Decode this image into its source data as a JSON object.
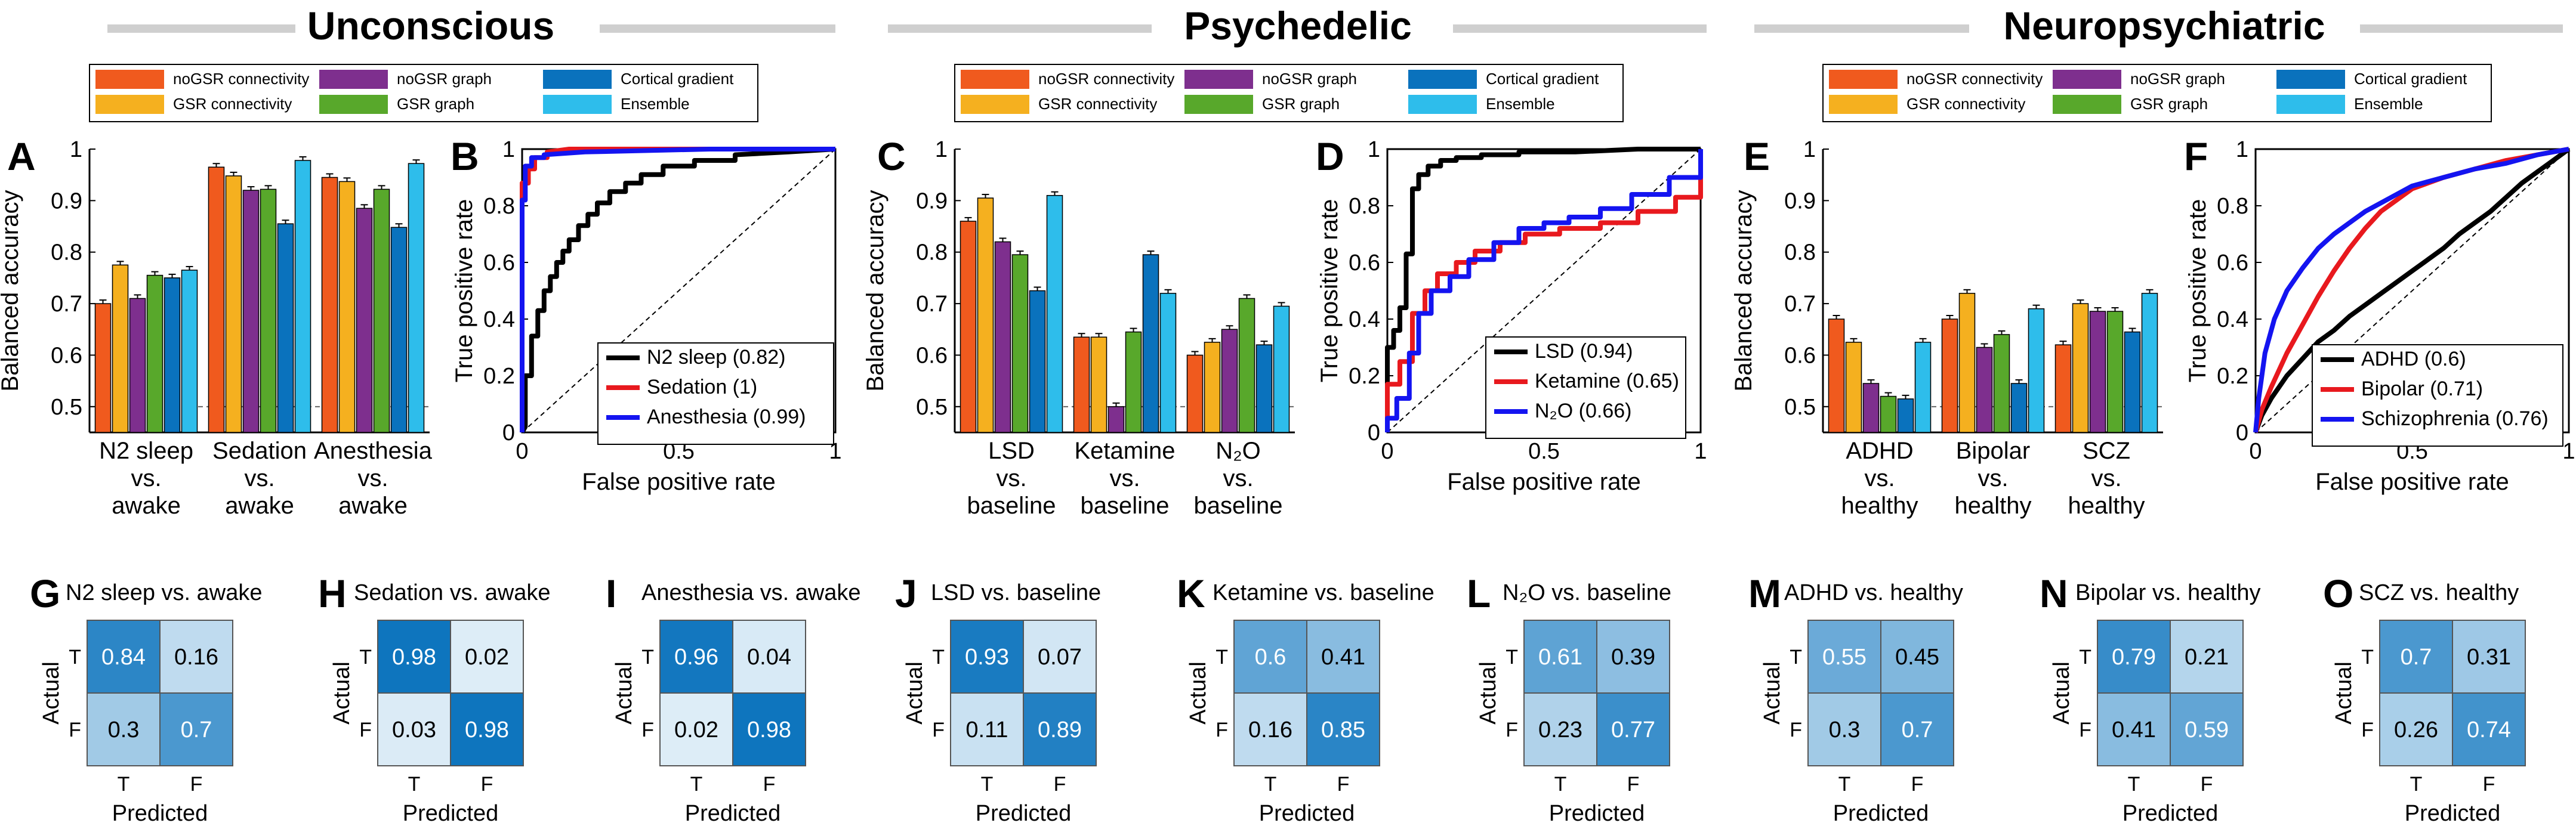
{
  "figure": {
    "groups": [
      {
        "title": "Unconscious"
      },
      {
        "title": "Psychedelic"
      },
      {
        "title": "Neuropsychiatric"
      }
    ],
    "legend": [
      {
        "label": "noGSR connectivity",
        "color": "#F05A1E"
      },
      {
        "label": "noGSR graph",
        "color": "#7E2F8E"
      },
      {
        "label": "Cortical gradient",
        "color": "#0A72BD"
      },
      {
        "label": "GSR connectivity",
        "color": "#F5B01F"
      },
      {
        "label": "GSR graph",
        "color": "#58A82B"
      },
      {
        "label": "Ensemble",
        "color": "#2EBDEB"
      }
    ],
    "colors": {
      "roc_black": "#000000",
      "roc_red": "#E8191E",
      "roc_blue": "#1414F0",
      "cm_dark": "#0A72BD",
      "cm_light": "#E1EFF8",
      "cm_mid": "#5AA5D6"
    }
  },
  "chart_data": [
    {
      "type": "bar",
      "panel": "A",
      "ylabel": "Balanced accuracy",
      "ylim": [
        0.45,
        1.0
      ],
      "yticks": [
        "0.5",
        "0.6",
        "0.7",
        "0.8",
        "0.9",
        "1"
      ],
      "chance_line": 0.5,
      "categories": [
        [
          "N2 sleep",
          "vs.",
          "awake"
        ],
        [
          "Sedation",
          "vs.",
          "awake"
        ],
        [
          "Anesthesia",
          "vs.",
          "awake"
        ]
      ],
      "series": [
        {
          "name": "noGSR connectivity",
          "values": [
            0.7,
            0.965,
            0.945
          ]
        },
        {
          "name": "GSR connectivity",
          "values": [
            0.775,
            0.948,
            0.937
          ]
        },
        {
          "name": "noGSR graph",
          "values": [
            0.71,
            0.92,
            0.885
          ]
        },
        {
          "name": "GSR graph",
          "values": [
            0.755,
            0.922,
            0.922
          ]
        },
        {
          "name": "Cortical gradient",
          "values": [
            0.75,
            0.855,
            0.848
          ]
        },
        {
          "name": "Ensemble",
          "values": [
            0.765,
            0.978,
            0.972
          ]
        }
      ]
    },
    {
      "type": "line",
      "panel": "B",
      "xlabel": "False positive rate",
      "ylabel": "True positive rate",
      "xlim": [
        0,
        1
      ],
      "ylim": [
        0,
        1
      ],
      "xticks": [
        "0",
        "0.5",
        "1"
      ],
      "yticks": [
        "0",
        "0.2",
        "0.4",
        "0.6",
        "0.8",
        "1"
      ],
      "legend_position": "bottom-right",
      "series": [
        {
          "name": "N2 sleep (0.82)",
          "color": "black",
          "x": [
            0,
            0.01,
            0.01,
            0.03,
            0.03,
            0.05,
            0.05,
            0.07,
            0.07,
            0.09,
            0.09,
            0.11,
            0.11,
            0.13,
            0.13,
            0.15,
            0.15,
            0.18,
            0.18,
            0.21,
            0.21,
            0.24,
            0.24,
            0.28,
            0.28,
            0.33,
            0.33,
            0.38,
            0.38,
            0.45,
            0.45,
            0.55,
            0.55,
            0.68,
            0.68,
            0.85,
            1
          ],
          "y": [
            0,
            0.02,
            0.2,
            0.2,
            0.34,
            0.34,
            0.43,
            0.43,
            0.5,
            0.5,
            0.55,
            0.55,
            0.6,
            0.6,
            0.64,
            0.64,
            0.68,
            0.68,
            0.73,
            0.73,
            0.77,
            0.77,
            0.81,
            0.81,
            0.85,
            0.85,
            0.88,
            0.88,
            0.91,
            0.91,
            0.94,
            0.94,
            0.96,
            0.96,
            0.98,
            0.99,
            1
          ]
        },
        {
          "name": "Sedation (1)",
          "color": "red",
          "x": [
            0,
            0,
            0.02,
            0.02,
            0.04,
            0.04,
            0.08,
            0.08,
            0.15,
            1
          ],
          "y": [
            0,
            0.88,
            0.88,
            0.93,
            0.93,
            0.97,
            0.97,
            0.99,
            1,
            1
          ]
        },
        {
          "name": "Anesthesia (0.99)",
          "color": "blue",
          "x": [
            0,
            0,
            0.01,
            0.01,
            0.03,
            0.03,
            0.07,
            0.07,
            0.2,
            0.6,
            1
          ],
          "y": [
            0,
            0.82,
            0.82,
            0.94,
            0.94,
            0.97,
            0.97,
            0.98,
            0.99,
            1,
            1
          ]
        }
      ]
    },
    {
      "type": "bar",
      "panel": "C",
      "ylabel": "Balanced accuracy",
      "ylim": [
        0.45,
        1.0
      ],
      "yticks": [
        "0.5",
        "0.6",
        "0.7",
        "0.8",
        "0.9",
        "1"
      ],
      "chance_line": 0.5,
      "categories": [
        [
          "LSD",
          "vs.",
          "baseline"
        ],
        [
          "Ketamine",
          "vs.",
          "baseline"
        ],
        [
          "N₂O",
          "vs.",
          "baseline"
        ]
      ],
      "series": [
        {
          "name": "noGSR connectivity",
          "values": [
            0.86,
            0.635,
            0.6
          ]
        },
        {
          "name": "GSR connectivity",
          "values": [
            0.905,
            0.635,
            0.625
          ]
        },
        {
          "name": "noGSR graph",
          "values": [
            0.82,
            0.5,
            0.65
          ]
        },
        {
          "name": "GSR graph",
          "values": [
            0.795,
            0.645,
            0.71
          ]
        },
        {
          "name": "Cortical gradient",
          "values": [
            0.725,
            0.795,
            0.62
          ]
        },
        {
          "name": "Ensemble",
          "values": [
            0.91,
            0.72,
            0.695
          ]
        }
      ]
    },
    {
      "type": "line",
      "panel": "D",
      "xlabel": "False positive rate",
      "ylabel": "True positive rate",
      "xlim": [
        0,
        1
      ],
      "ylim": [
        0,
        1
      ],
      "xticks": [
        "0",
        "0.5",
        "1"
      ],
      "yticks": [
        "0",
        "0.2",
        "0.4",
        "0.6",
        "0.8",
        "1"
      ],
      "legend_position": "bottom-right",
      "series": [
        {
          "name": "LSD (0.94)",
          "color": "black",
          "x": [
            0,
            0,
            0.02,
            0.02,
            0.04,
            0.04,
            0.06,
            0.06,
            0.08,
            0.08,
            0.1,
            0.1,
            0.13,
            0.13,
            0.17,
            0.17,
            0.22,
            0.22,
            0.3,
            0.3,
            0.42,
            0.42,
            0.6,
            0.8,
            1
          ],
          "y": [
            0,
            0.3,
            0.3,
            0.36,
            0.36,
            0.44,
            0.44,
            0.63,
            0.63,
            0.86,
            0.86,
            0.91,
            0.91,
            0.94,
            0.94,
            0.96,
            0.96,
            0.97,
            0.97,
            0.98,
            0.98,
            0.99,
            0.99,
            1,
            1
          ]
        },
        {
          "name": "Ketamine (0.65)",
          "color": "red",
          "x": [
            0,
            0,
            0.04,
            0.04,
            0.08,
            0.08,
            0.12,
            0.12,
            0.16,
            0.16,
            0.22,
            0.22,
            0.28,
            0.28,
            0.36,
            0.36,
            0.44,
            0.44,
            0.55,
            0.55,
            0.68,
            0.68,
            0.8,
            0.8,
            0.92,
            0.92,
            1,
            1
          ],
          "y": [
            0,
            0.17,
            0.17,
            0.25,
            0.25,
            0.42,
            0.42,
            0.5,
            0.5,
            0.56,
            0.56,
            0.6,
            0.6,
            0.64,
            0.64,
            0.67,
            0.67,
            0.7,
            0.7,
            0.72,
            0.72,
            0.74,
            0.74,
            0.78,
            0.78,
            0.83,
            0.83,
            1
          ]
        },
        {
          "name": "N₂O (0.66)",
          "color": "blue",
          "x": [
            0,
            0,
            0.03,
            0.03,
            0.07,
            0.07,
            0.1,
            0.1,
            0.14,
            0.14,
            0.2,
            0.2,
            0.26,
            0.26,
            0.34,
            0.34,
            0.42,
            0.42,
            0.5,
            0.5,
            0.58,
            0.58,
            0.68,
            0.68,
            0.78,
            0.78,
            0.9,
            0.9,
            1,
            1
          ],
          "y": [
            0,
            0.05,
            0.05,
            0.12,
            0.12,
            0.28,
            0.28,
            0.42,
            0.42,
            0.5,
            0.5,
            0.55,
            0.55,
            0.61,
            0.61,
            0.67,
            0.67,
            0.72,
            0.72,
            0.74,
            0.74,
            0.76,
            0.76,
            0.79,
            0.79,
            0.84,
            0.84,
            0.9,
            0.9,
            1
          ]
        }
      ]
    },
    {
      "type": "bar",
      "panel": "E",
      "ylabel": "Balanced accuracy",
      "ylim": [
        0.45,
        1.0
      ],
      "yticks": [
        "0.5",
        "0.6",
        "0.7",
        "0.8",
        "0.9",
        "1"
      ],
      "chance_line": 0.5,
      "categories": [
        [
          "ADHD",
          "vs.",
          "healthy"
        ],
        [
          "Bipolar",
          "vs.",
          "healthy"
        ],
        [
          "SCZ",
          "vs.",
          "healthy"
        ]
      ],
      "series": [
        {
          "name": "noGSR connectivity",
          "values": [
            0.67,
            0.67,
            0.62
          ]
        },
        {
          "name": "GSR connectivity",
          "values": [
            0.625,
            0.72,
            0.7
          ]
        },
        {
          "name": "noGSR graph",
          "values": [
            0.545,
            0.615,
            0.685
          ]
        },
        {
          "name": "GSR graph",
          "values": [
            0.52,
            0.64,
            0.685
          ]
        },
        {
          "name": "Cortical gradient",
          "values": [
            0.515,
            0.545,
            0.645
          ]
        },
        {
          "name": "Ensemble",
          "values": [
            0.625,
            0.69,
            0.72
          ]
        }
      ]
    },
    {
      "type": "line",
      "panel": "F",
      "xlabel": "False positive rate",
      "ylabel": "True positive rate",
      "xlim": [
        0,
        1
      ],
      "ylim": [
        0,
        1
      ],
      "xticks": [
        "0",
        "0.5",
        "1"
      ],
      "yticks": [
        "0",
        "0.2",
        "0.4",
        "0.6",
        "0.8",
        "1"
      ],
      "legend_position": "bottom-right",
      "series": [
        {
          "name": "ADHD (0.6)",
          "color": "black",
          "x": [
            0,
            0.02,
            0.05,
            0.1,
            0.15,
            0.2,
            0.25,
            0.3,
            0.35,
            0.4,
            0.45,
            0.5,
            0.55,
            0.6,
            0.65,
            0.7,
            0.75,
            0.8,
            0.85,
            0.9,
            0.95,
            1
          ],
          "y": [
            0,
            0.06,
            0.12,
            0.2,
            0.26,
            0.32,
            0.36,
            0.41,
            0.45,
            0.49,
            0.53,
            0.57,
            0.61,
            0.65,
            0.7,
            0.74,
            0.78,
            0.83,
            0.88,
            0.92,
            0.96,
            1
          ]
        },
        {
          "name": "Bipolar (0.71)",
          "color": "red",
          "x": [
            0,
            0.02,
            0.05,
            0.1,
            0.15,
            0.2,
            0.25,
            0.3,
            0.35,
            0.4,
            0.45,
            0.5,
            0.55,
            0.6,
            0.7,
            0.8,
            0.9,
            1
          ],
          "y": [
            0,
            0.08,
            0.16,
            0.28,
            0.38,
            0.48,
            0.57,
            0.65,
            0.72,
            0.78,
            0.82,
            0.86,
            0.88,
            0.9,
            0.93,
            0.96,
            0.98,
            1
          ]
        },
        {
          "name": "Schizophrenia (0.76)",
          "color": "blue",
          "x": [
            0,
            0.01,
            0.03,
            0.06,
            0.1,
            0.15,
            0.2,
            0.25,
            0.3,
            0.35,
            0.4,
            0.45,
            0.5,
            0.6,
            0.7,
            0.8,
            0.9,
            1
          ],
          "y": [
            0,
            0.12,
            0.28,
            0.4,
            0.5,
            0.58,
            0.65,
            0.7,
            0.74,
            0.78,
            0.81,
            0.84,
            0.87,
            0.9,
            0.93,
            0.95,
            0.98,
            1
          ]
        }
      ]
    },
    {
      "type": "heatmap",
      "panel": "G",
      "title": "N2 sleep vs. awake",
      "xlabel": "Predicted",
      "ylabel": "Actual",
      "x_labels": [
        "T",
        "F"
      ],
      "y_labels": [
        "T",
        "F"
      ],
      "values": [
        [
          0.84,
          0.16
        ],
        [
          0.3,
          0.7
        ]
      ]
    },
    {
      "type": "heatmap",
      "panel": "H",
      "title": "Sedation vs. awake",
      "xlabel": "Predicted",
      "ylabel": "Actual",
      "x_labels": [
        "T",
        "F"
      ],
      "y_labels": [
        "T",
        "F"
      ],
      "values": [
        [
          0.98,
          0.02
        ],
        [
          0.03,
          0.98
        ]
      ]
    },
    {
      "type": "heatmap",
      "panel": "I",
      "title": "Anesthesia vs. awake",
      "xlabel": "Predicted",
      "ylabel": "Actual",
      "x_labels": [
        "T",
        "F"
      ],
      "y_labels": [
        "T",
        "F"
      ],
      "values": [
        [
          0.96,
          0.04
        ],
        [
          0.02,
          0.98
        ]
      ]
    },
    {
      "type": "heatmap",
      "panel": "J",
      "title": "LSD vs. baseline",
      "xlabel": "Predicted",
      "ylabel": "Actual",
      "x_labels": [
        "T",
        "F"
      ],
      "y_labels": [
        "T",
        "F"
      ],
      "values": [
        [
          0.93,
          0.07
        ],
        [
          0.11,
          0.89
        ]
      ]
    },
    {
      "type": "heatmap",
      "panel": "K",
      "title": "Ketamine vs. baseline",
      "xlabel": "Predicted",
      "ylabel": "Actual",
      "x_labels": [
        "T",
        "F"
      ],
      "y_labels": [
        "T",
        "F"
      ],
      "values": [
        [
          0.6,
          0.41
        ],
        [
          0.16,
          0.85
        ]
      ]
    },
    {
      "type": "heatmap",
      "panel": "L",
      "title": "N₂O vs. baseline",
      "xlabel": "Predicted",
      "ylabel": "Actual",
      "x_labels": [
        "T",
        "F"
      ],
      "y_labels": [
        "T",
        "F"
      ],
      "values": [
        [
          0.61,
          0.39
        ],
        [
          0.23,
          0.77
        ]
      ]
    },
    {
      "type": "heatmap",
      "panel": "M",
      "title": "ADHD vs. healthy",
      "xlabel": "Predicted",
      "ylabel": "Actual",
      "x_labels": [
        "T",
        "F"
      ],
      "y_labels": [
        "T",
        "F"
      ],
      "values": [
        [
          0.55,
          0.45
        ],
        [
          0.3,
          0.7
        ]
      ]
    },
    {
      "type": "heatmap",
      "panel": "N",
      "title": "Bipolar vs. healthy",
      "xlabel": "Predicted",
      "ylabel": "Actual",
      "x_labels": [
        "T",
        "F"
      ],
      "y_labels": [
        "T",
        "F"
      ],
      "values": [
        [
          0.79,
          0.21
        ],
        [
          0.41,
          0.59
        ]
      ]
    },
    {
      "type": "heatmap",
      "panel": "O",
      "title": "SCZ vs. healthy",
      "xlabel": "Predicted",
      "ylabel": "Actual",
      "x_labels": [
        "T",
        "F"
      ],
      "y_labels": [
        "T",
        "F"
      ],
      "values": [
        [
          0.7,
          0.31
        ],
        [
          0.26,
          0.74
        ]
      ]
    }
  ]
}
